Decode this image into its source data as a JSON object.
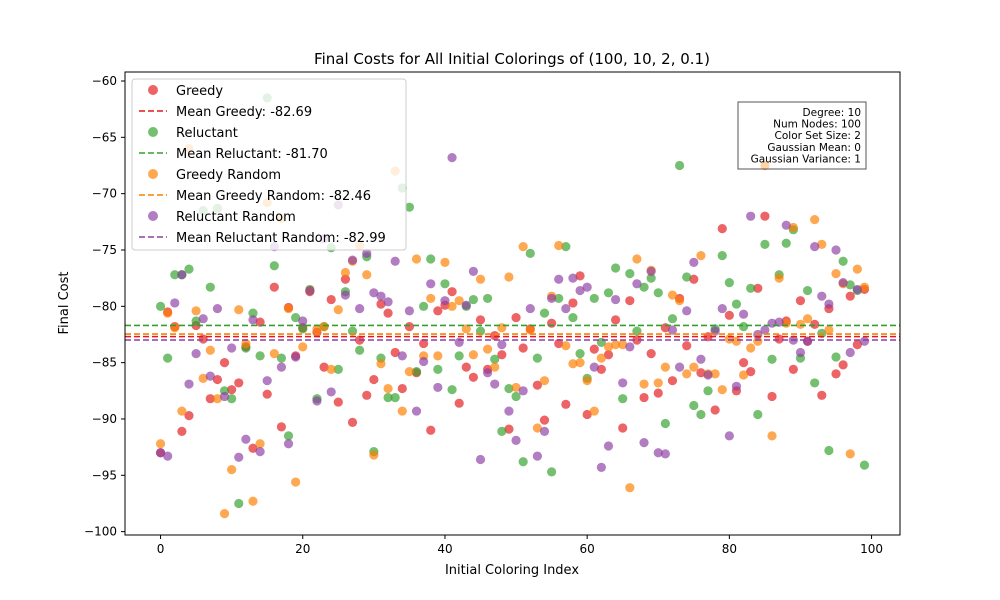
{
  "chart_data": {
    "type": "scatter",
    "title": "Final Costs for All Initial Colorings of (100, 10, 2, 0.1)",
    "xlabel": "Initial Coloring Index",
    "ylabel": "Final Cost",
    "xlim": [
      -5,
      104
    ],
    "ylim": [
      -100.3,
      -59.2
    ],
    "xticks": [
      0,
      20,
      40,
      60,
      80,
      100
    ],
    "yticks": [
      -100,
      -95,
      -90,
      -85,
      -80,
      -75,
      -70,
      -65,
      -60
    ],
    "grid": false,
    "legend_position": "top-left",
    "series": [
      {
        "name": "Greedy",
        "color": "#e31a1c",
        "mean": -82.69,
        "mean_label": "Mean Greedy: -82.69",
        "values": [
          -93.0,
          -80.5,
          -81.8,
          -91.1,
          -89.7,
          -81.7,
          -82.9,
          -88.2,
          -86.5,
          -85.0,
          -87.4,
          -86.8,
          -83.6,
          -92.6,
          -81.4,
          -87.8,
          -78.3,
          -90.7,
          -80.1,
          -84.4,
          -81.9,
          -78.7,
          -82.3,
          -85.4,
          -79.4,
          -88.5,
          -77.6,
          -90.3,
          -83.0,
          -87.9,
          -86.5,
          -79.8,
          -80.6,
          -84.1,
          -87.3,
          -81.8,
          -85.9,
          -83.3,
          -91.0,
          -80.4,
          -79.9,
          -78.7,
          -88.6,
          -85.4,
          -86.3,
          -81.2,
          -85.6,
          -82.6,
          -84.3,
          -90.9,
          -81.0,
          -83.7,
          -82.0,
          -87.0,
          -90.1,
          -81.5,
          -83.3,
          -88.7,
          -79.7,
          -77.3,
          -89.6,
          -83.8,
          -85.6,
          -84.3,
          -81.2,
          -90.8,
          -79.5,
          -83.0,
          -88.1,
          -84.2,
          -87.7,
          -81.9,
          -86.6,
          -79.3,
          -83.5,
          -77.6,
          -85.9,
          -82.7,
          -89.2,
          -73.1,
          -80.8,
          -87.5,
          -85.0,
          -85.8,
          -78.4,
          -72.0,
          -88.0,
          -82.9,
          -81.3,
          -85.6,
          -79.5,
          -83.1,
          -81.6,
          -87.9,
          -80.2,
          -86.0,
          -85.2,
          -79.1,
          -83.4,
          -78.5
        ]
      },
      {
        "name": "Reluctant",
        "color": "#33a02c",
        "mean": -81.7,
        "mean_label": "Mean Reluctant: -81.70",
        "values": [
          -80.0,
          -84.6,
          -77.2,
          -77.2,
          -76.7,
          -81.3,
          -71.5,
          -78.3,
          -71.3,
          -87.5,
          -88.2,
          -97.5,
          -83.7,
          -80.6,
          -84.4,
          -61.5,
          -76.4,
          -84.6,
          -91.5,
          -81.0,
          -82.0,
          -78.5,
          -88.2,
          -81.8,
          -74.8,
          -85.6,
          -78.7,
          -82.2,
          -83.9,
          -75.6,
          -92.9,
          -84.6,
          -88.1,
          -88.1,
          -69.5,
          -71.2,
          -85.8,
          -80.0,
          -75.8,
          -85.6,
          -78.0,
          -87.4,
          -84.4,
          -80.0,
          -79.4,
          -82.2,
          -79.3,
          -84.7,
          -91.1,
          -87.3,
          -88.0,
          -93.8,
          -75.3,
          -84.6,
          -80.6,
          -94.7,
          -79.3,
          -74.7,
          -81.0,
          -84.2,
          -86.4,
          -79.3,
          -83.2,
          -78.8,
          -76.6,
          -88.2,
          -77.1,
          -82.2,
          -78.3,
          -77.5,
          -78.8,
          -90.4,
          -81.1,
          -67.5,
          -77.4,
          -88.8,
          -89.6,
          -87.5,
          -82.0,
          -75.5,
          -77.9,
          -79.8,
          -81.8,
          -78.4,
          -89.6,
          -74.5,
          -84.7,
          -77.2,
          -74.4,
          -73.2,
          -84.6,
          -78.6,
          -86.8,
          -82.4,
          -92.8,
          -84.5,
          -76.0,
          -78.1,
          -78.6,
          -94.1
        ]
      },
      {
        "name": "Greedy Random",
        "color": "#ff7f00",
        "mean": -82.46,
        "mean_label": "Mean Greedy Random: -82.46",
        "values": [
          -92.2,
          -80.6,
          -81.9,
          -89.3,
          -66.0,
          -80.4,
          -86.4,
          -83.9,
          -88.2,
          -98.4,
          -94.5,
          -80.3,
          -83.3,
          -97.3,
          -92.2,
          -70.8,
          -84.2,
          -72.2,
          -80.2,
          -95.6,
          -83.6,
          -78.6,
          -82.0,
          -81.8,
          -85.6,
          -80.3,
          -77.0,
          -76.0,
          -74.6,
          -77.2,
          -93.2,
          -85.1,
          -87.3,
          -68.0,
          -89.3,
          -85.8,
          -75.8,
          -84.4,
          -79.3,
          -84.4,
          -76.1,
          -80.0,
          -79.5,
          -82.0,
          -84.3,
          -77.6,
          -83.8,
          -85.4,
          -81.9,
          -77.4,
          -87.2,
          -74.7,
          -82.1,
          -90.8,
          -86.6,
          -79.1,
          -74.6,
          -83.5,
          -85.1,
          -85.0,
          -86.6,
          -89.3,
          -84.6,
          -83.6,
          -83.4,
          -83.4,
          -96.1,
          -75.8,
          -86.9,
          -76.8,
          -86.8,
          -85.4,
          -79.0,
          -79.5,
          -86.0,
          -85.4,
          -75.5,
          -86.0,
          -86.0,
          -87.4,
          -82.9,
          -83.1,
          -86.1,
          -83.7,
          -83.1,
          -67.5,
          -91.5,
          -77.5,
          -81.5,
          -73.0,
          -81.6,
          -81.1,
          -72.3,
          -74.5,
          -82.1,
          -77.1,
          -78.0,
          -93.1,
          -76.7,
          -78.3
        ]
      },
      {
        "name": "Reluctant Random",
        "color": "#8e3fa3",
        "mean": -82.99,
        "mean_label": "Mean Reluctant Random: -82.99",
        "values": [
          -93.0,
          -93.3,
          -79.7,
          -77.2,
          -86.9,
          -84.2,
          -81.1,
          -86.2,
          -80.2,
          -88.0,
          -83.7,
          -93.4,
          -91.8,
          -81.2,
          -92.9,
          -86.6,
          -74.7,
          -85.4,
          -92.2,
          -84.5,
          -81.3,
          -78.6,
          -88.4,
          -74.0,
          -87.6,
          -71.0,
          -79.0,
          -75.9,
          -80.2,
          -75.3,
          -78.8,
          -79.1,
          -79.6,
          -76.0,
          -84.4,
          -80.4,
          -89.3,
          -84.9,
          -78.0,
          -87.2,
          -79.5,
          -66.8,
          -83.2,
          -79.9,
          -76.9,
          -93.6,
          -85.9,
          -86.9,
          -83.4,
          -89.3,
          -91.9,
          -87.5,
          -80.2,
          -93.3,
          -91.1,
          -79.3,
          -77.6,
          -80.2,
          -77.5,
          -78.6,
          -78.3,
          -85.4,
          -94.3,
          -92.4,
          -79.4,
          -86.8,
          -83.6,
          -78.0,
          -92.1,
          -76.9,
          -93.0,
          -93.1,
          -82.1,
          -85.4,
          -80.4,
          -76.1,
          -84.7,
          -86.1,
          -82.2,
          -80.2,
          -91.5,
          -87.1,
          -80.7,
          -72.0,
          -82.5,
          -82.1,
          -81.5,
          -81.4,
          -72.8,
          -83.0,
          -84.1,
          -83.1,
          -74.7,
          -79.1,
          -79.8,
          -75.0,
          -77.9,
          -84.1,
          -78.5,
          -83.1
        ]
      }
    ],
    "info_box": [
      "Degree: 10",
      "Num Nodes: 100",
      "Color Set Size: 2",
      "Gaussian Mean: 0",
      "Gaussian Variance: 1"
    ]
  }
}
